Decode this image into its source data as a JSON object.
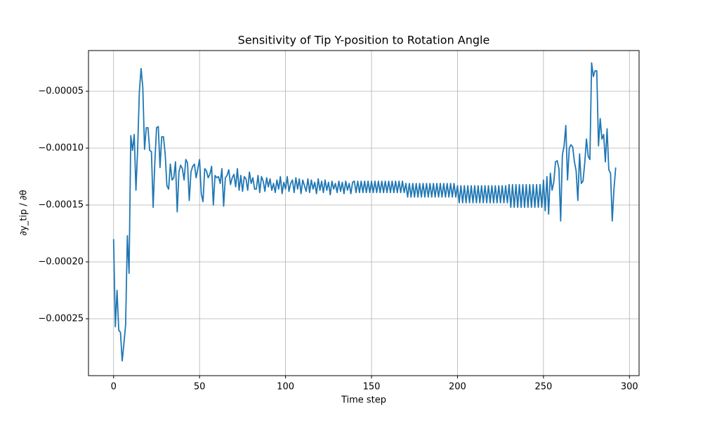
{
  "chart_data": {
    "type": "line",
    "title": "Sensitivity of Tip Y-position to Rotation Angle",
    "x_label": "Time step",
    "y_label": "∂y_tip / ∂θ",
    "grid": true,
    "xlim": [
      -14.6,
      305.6
    ],
    "ylim": [
      -0.0003,
      -1.42e-05
    ],
    "xticks": [
      0,
      50,
      100,
      150,
      200,
      250,
      300
    ],
    "yticks": [
      {
        "value": -0.00025,
        "label": "−0.00025"
      },
      {
        "value": -0.0002,
        "label": "−0.00020"
      },
      {
        "value": -0.00015,
        "label": "−0.00015"
      },
      {
        "value": -0.0001,
        "label": "−0.00010"
      },
      {
        "value": -5e-05,
        "label": "−0.00005"
      }
    ],
    "x": [
      0,
      1,
      2,
      3,
      4,
      5,
      6,
      7,
      8,
      9,
      10,
      11,
      12,
      13,
      14,
      15,
      16,
      17,
      18,
      19,
      20,
      21,
      22,
      23,
      24,
      25,
      26,
      27,
      28,
      29,
      30,
      31,
      32,
      33,
      34,
      35,
      36,
      37,
      38,
      39,
      40,
      41,
      42,
      43,
      44,
      45,
      46,
      47,
      48,
      49,
      50,
      51,
      52,
      53,
      54,
      55,
      56,
      57,
      58,
      59,
      60,
      61,
      62,
      63,
      64,
      65,
      66,
      67,
      68,
      69,
      70,
      71,
      72,
      73,
      74,
      75,
      76,
      77,
      78,
      79,
      80,
      81,
      82,
      83,
      84,
      85,
      86,
      87,
      88,
      89,
      90,
      91,
      92,
      93,
      94,
      95,
      96,
      97,
      98,
      99,
      100,
      101,
      102,
      103,
      104,
      105,
      106,
      107,
      108,
      109,
      110,
      111,
      112,
      113,
      114,
      115,
      116,
      117,
      118,
      119,
      120,
      121,
      122,
      123,
      124,
      125,
      126,
      127,
      128,
      129,
      130,
      131,
      132,
      133,
      134,
      135,
      136,
      137,
      138,
      139,
      140,
      141,
      142,
      143,
      144,
      145,
      146,
      147,
      148,
      149,
      150,
      151,
      152,
      153,
      154,
      155,
      156,
      157,
      158,
      159,
      160,
      161,
      162,
      163,
      164,
      165,
      166,
      167,
      168,
      169,
      170,
      171,
      172,
      173,
      174,
      175,
      176,
      177,
      178,
      179,
      180,
      181,
      182,
      183,
      184,
      185,
      186,
      187,
      188,
      189,
      190,
      191,
      192,
      193,
      194,
      195,
      196,
      197,
      198,
      199,
      200,
      201,
      202,
      203,
      204,
      205,
      206,
      207,
      208,
      209,
      210,
      211,
      212,
      213,
      214,
      215,
      216,
      217,
      218,
      219,
      220,
      221,
      222,
      223,
      224,
      225,
      226,
      227,
      228,
      229,
      230,
      231,
      232,
      233,
      234,
      235,
      236,
      237,
      238,
      239,
      240,
      241,
      242,
      243,
      244,
      245,
      246,
      247,
      248,
      249,
      250,
      251,
      252,
      253,
      254,
      255,
      256,
      257,
      258,
      259,
      260,
      261,
      262,
      263,
      264,
      265,
      266,
      267,
      268,
      269,
      270,
      271,
      272,
      273,
      274,
      275,
      276,
      277,
      278,
      279,
      280,
      281,
      282,
      283,
      284,
      285,
      286,
      287,
      288,
      289,
      290,
      291,
      292
    ],
    "series": [
      {
        "color": "#1f77b4",
        "values": [
          -0.00018,
          -0.000257,
          -0.000225,
          -0.00026,
          -0.000262,
          -0.000287,
          -0.000272,
          -0.000255,
          -0.000177,
          -0.00021,
          -8.9e-05,
          -0.000102,
          -8.8e-05,
          -0.000137,
          -0.0001,
          -5e-05,
          -3e-05,
          -4.7e-05,
          -0.000101,
          -8.2e-05,
          -8.2e-05,
          -0.000102,
          -0.000103,
          -0.000152,
          -0.000112,
          -8.2e-05,
          -8.1e-05,
          -0.000117,
          -9e-05,
          -9e-05,
          -0.000105,
          -0.000133,
          -0.000136,
          -0.000114,
          -0.000128,
          -0.000126,
          -0.000112,
          -0.000156,
          -0.000121,
          -0.000115,
          -0.000118,
          -0.000128,
          -0.00011,
          -0.000113,
          -0.000146,
          -0.000121,
          -0.000116,
          -0.000114,
          -0.000126,
          -0.000118,
          -0.00011,
          -0.00014,
          -0.000147,
          -0.000118,
          -0.00012,
          -0.000126,
          -0.000123,
          -0.000116,
          -0.00015,
          -0.000124,
          -0.000126,
          -0.000125,
          -0.000131,
          -0.000118,
          -0.000151,
          -0.000126,
          -0.000124,
          -0.000119,
          -0.000132,
          -0.000126,
          -0.000123,
          -0.000134,
          -0.000118,
          -0.000137,
          -0.000124,
          -0.000138,
          -0.000125,
          -0.000127,
          -0.000137,
          -0.000121,
          -0.000131,
          -0.000126,
          -0.000136,
          -0.000136,
          -0.000124,
          -0.000139,
          -0.000125,
          -0.000129,
          -0.000138,
          -0.000126,
          -0.000134,
          -0.000127,
          -0.000137,
          -0.000131,
          -0.000139,
          -0.000128,
          -0.000136,
          -0.000125,
          -0.00014,
          -0.00013,
          -0.000136,
          -0.000125,
          -0.000138,
          -0.000131,
          -0.000128,
          -0.000139,
          -0.000126,
          -0.000136,
          -0.000127,
          -0.00014,
          -0.000128,
          -0.000133,
          -0.000138,
          -0.000127,
          -0.000139,
          -0.000128,
          -0.000136,
          -0.00013,
          -0.00014,
          -0.000127,
          -0.000137,
          -0.000129,
          -0.000139,
          -0.000128,
          -0.000137,
          -0.00013,
          -0.000141,
          -0.000129,
          -0.000136,
          -0.000131,
          -0.000139,
          -0.000129,
          -0.000138,
          -0.00013,
          -0.00014,
          -0.000129,
          -0.000137,
          -0.000131,
          -0.00014,
          -0.00013,
          -0.000129,
          -0.000139,
          -0.000129,
          -0.000139,
          -0.000129,
          -0.000139,
          -0.000129,
          -0.000139,
          -0.000129,
          -0.000139,
          -0.000129,
          -0.000139,
          -0.000129,
          -0.000139,
          -0.000129,
          -0.000139,
          -0.000129,
          -0.000139,
          -0.000129,
          -0.000139,
          -0.000129,
          -0.000139,
          -0.000129,
          -0.000139,
          -0.000129,
          -0.000139,
          -0.000129,
          -0.000139,
          -0.000129,
          -0.000139,
          -0.000131,
          -0.000143,
          -0.000131,
          -0.000143,
          -0.000131,
          -0.000143,
          -0.000131,
          -0.000143,
          -0.000131,
          -0.000143,
          -0.000131,
          -0.000143,
          -0.000131,
          -0.000143,
          -0.000131,
          -0.000143,
          -0.000131,
          -0.000143,
          -0.000131,
          -0.000143,
          -0.000131,
          -0.000143,
          -0.000131,
          -0.000143,
          -0.000131,
          -0.000143,
          -0.000131,
          -0.000143,
          -0.000131,
          -0.000143,
          -0.000133,
          -0.000148,
          -0.000133,
          -0.000148,
          -0.000133,
          -0.000148,
          -0.000133,
          -0.000148,
          -0.000133,
          -0.000148,
          -0.000133,
          -0.000148,
          -0.000133,
          -0.000148,
          -0.000133,
          -0.000148,
          -0.000133,
          -0.000148,
          -0.000133,
          -0.000148,
          -0.000133,
          -0.000148,
          -0.000133,
          -0.000148,
          -0.000133,
          -0.000148,
          -0.000133,
          -0.000148,
          -0.000133,
          -0.000148,
          -0.000132,
          -0.000152,
          -0.000132,
          -0.000152,
          -0.000132,
          -0.000152,
          -0.000132,
          -0.000152,
          -0.000132,
          -0.000152,
          -0.000132,
          -0.000152,
          -0.000132,
          -0.000152,
          -0.000132,
          -0.000152,
          -0.000132,
          -0.000152,
          -0.000132,
          -0.000152,
          -0.000128,
          -0.000155,
          -0.000125,
          -0.000158,
          -0.000122,
          -0.000137,
          -0.00013,
          -0.000112,
          -0.000111,
          -0.000118,
          -0.000164,
          -0.000106,
          -9.8e-05,
          -8e-05,
          -0.000128,
          -0.0001,
          -9.7e-05,
          -9.9e-05,
          -0.000112,
          -0.00012,
          -0.000146,
          -0.000105,
          -0.000131,
          -0.000129,
          -0.000113,
          -9.2e-05,
          -0.000107,
          -0.00011,
          -2.5e-05,
          -3.7e-05,
          -3.2e-05,
          -3.2e-05,
          -9.8e-05,
          -7.4e-05,
          -9.2e-05,
          -8.8e-05,
          -0.000112,
          -8.3e-05,
          -0.000119,
          -0.000122,
          -0.000164,
          -0.000136,
          -0.000117
        ]
      }
    ]
  }
}
